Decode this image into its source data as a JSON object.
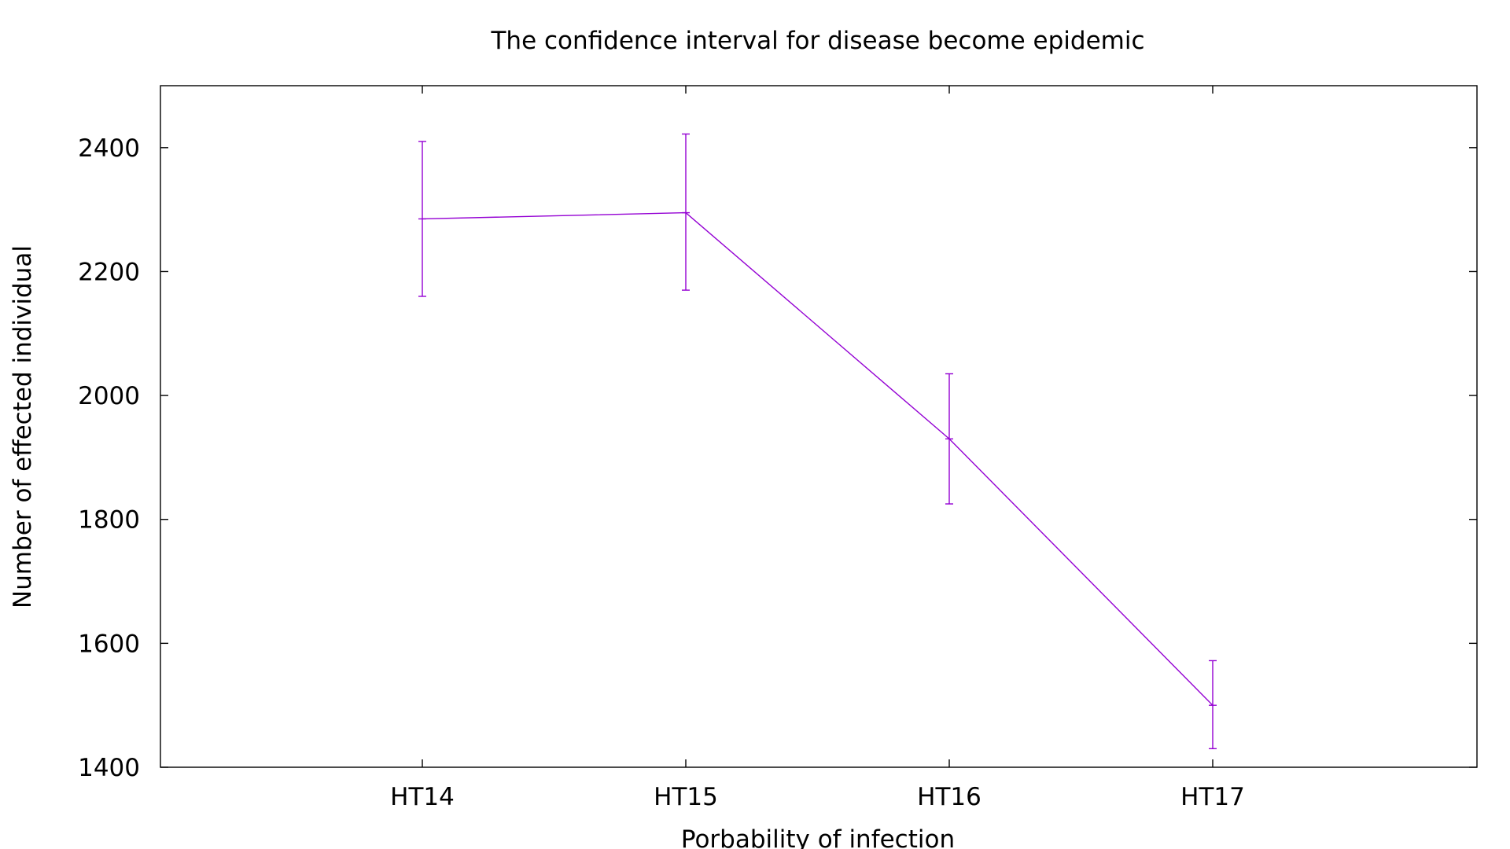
{
  "chart_data": {
    "type": "line",
    "title": "The confidence interval for disease become epidemic",
    "xlabel": "Porbability of infection",
    "ylabel": "Number of effected individual",
    "categories": [
      "HT14",
      "HT15",
      "HT16",
      "HT17"
    ],
    "ylim": [
      1400,
      2500
    ],
    "yticks": [
      1400,
      1600,
      1800,
      2000,
      2200,
      2400
    ],
    "ytick_labels": [
      "1400",
      "1600",
      "1800",
      "2000",
      "2200",
      "2400"
    ],
    "grid": false,
    "legend": "none",
    "series": [
      {
        "values": [
          2285,
          2295,
          1930,
          1500
        ],
        "lower": [
          2160,
          2170,
          1825,
          1430
        ],
        "upper": [
          2410,
          2422,
          2035,
          1572
        ],
        "color": "#9400d3"
      }
    ]
  }
}
